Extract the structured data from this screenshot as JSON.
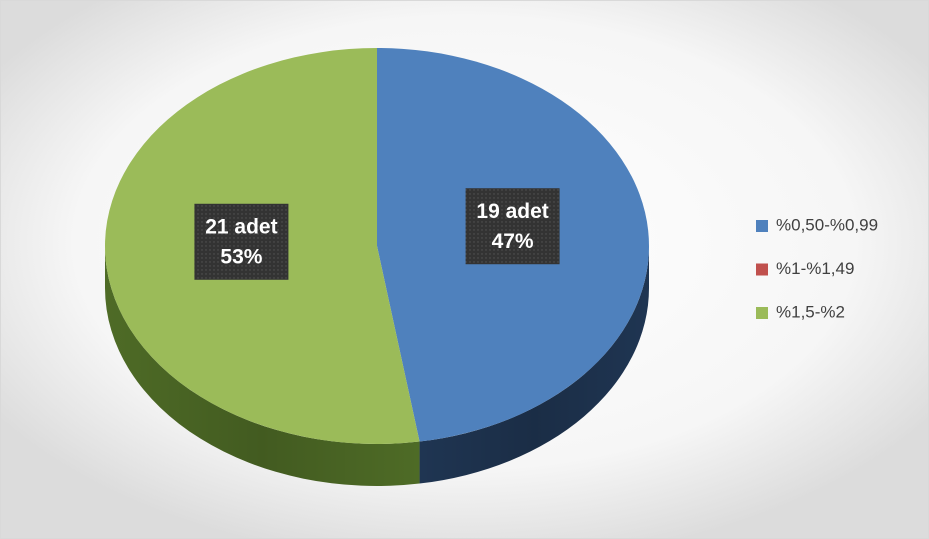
{
  "chart_data": {
    "type": "pie3d",
    "categories": [
      "%0,50-%0,99",
      "%1-%1,49",
      "%1,5-%2"
    ],
    "values": [
      19,
      0,
      21
    ],
    "value_labels": [
      [
        "19 adet",
        "47%"
      ],
      null,
      [
        "21 adet",
        "53%"
      ]
    ],
    "colors": [
      "#4f81bd",
      "#c0504d",
      "#9bbb59"
    ],
    "side_colors": [
      "#1f3552",
      "#7a2e2c",
      "#4e6b26"
    ],
    "legend": "right"
  }
}
